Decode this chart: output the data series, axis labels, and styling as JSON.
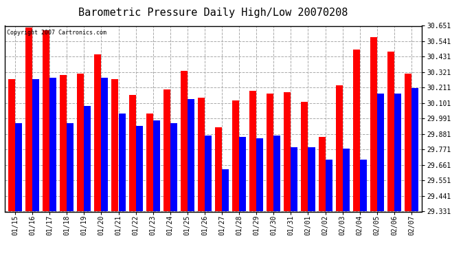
{
  "title": "Barometric Pressure Daily High/Low 20070208",
  "copyright": "Copyright 2007 Cartronics.com",
  "dates": [
    "01/15",
    "01/16",
    "01/17",
    "01/18",
    "01/19",
    "01/20",
    "01/21",
    "01/22",
    "01/23",
    "01/24",
    "01/25",
    "01/26",
    "01/27",
    "01/28",
    "01/29",
    "01/30",
    "01/31",
    "02/01",
    "02/02",
    "02/03",
    "02/04",
    "02/05",
    "02/06",
    "02/07"
  ],
  "highs": [
    30.27,
    30.64,
    30.62,
    30.3,
    30.31,
    30.45,
    30.27,
    30.16,
    30.03,
    30.2,
    30.33,
    30.14,
    29.93,
    30.12,
    30.19,
    30.17,
    30.18,
    30.11,
    29.86,
    30.23,
    30.48,
    30.57,
    30.47,
    30.31
  ],
  "lows": [
    29.96,
    30.27,
    30.28,
    29.96,
    30.08,
    30.28,
    30.03,
    29.94,
    29.98,
    29.96,
    30.13,
    29.87,
    29.63,
    29.86,
    29.85,
    29.87,
    29.79,
    29.79,
    29.7,
    29.78,
    29.7,
    30.17,
    30.17,
    30.21
  ],
  "ylim_min": 29.331,
  "ylim_max": 30.651,
  "yticks": [
    29.331,
    29.441,
    29.551,
    29.661,
    29.771,
    29.881,
    29.991,
    30.101,
    30.211,
    30.321,
    30.431,
    30.541,
    30.651
  ],
  "high_color": "#ff0000",
  "low_color": "#0000ff",
  "bg_color": "#ffffff",
  "grid_color": "#aaaaaa",
  "bar_width": 0.4,
  "title_fontsize": 11,
  "tick_fontsize": 7
}
